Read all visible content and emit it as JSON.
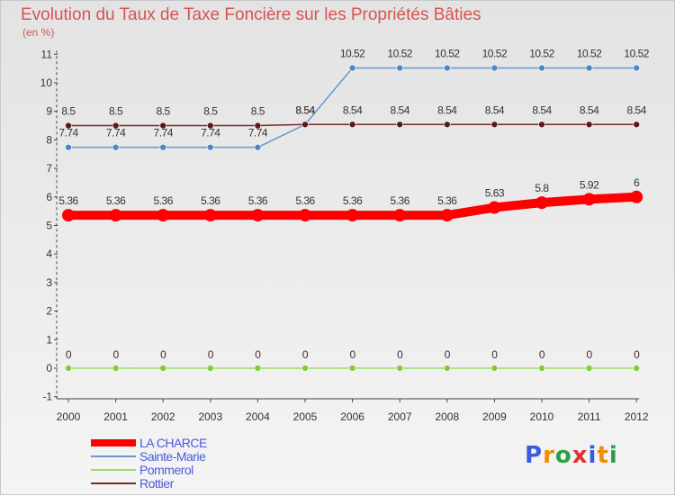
{
  "title": "Evolution du Taux de Taxe Foncière sur les Propriétés Bâties",
  "unit": "(en %)",
  "chart_data": {
    "type": "line",
    "title": "Evolution du Taux de Taxe Foncière sur les Propriétés Bâties",
    "ylabel": "(en %)",
    "xlabel": "",
    "categories": [
      "2000",
      "2001",
      "2002",
      "2003",
      "2004",
      "2005",
      "2006",
      "2007",
      "2008",
      "2009",
      "2010",
      "2011",
      "2012"
    ],
    "ylim": [
      -1,
      11
    ],
    "yticks": [
      -1,
      0,
      1,
      2,
      3,
      4,
      5,
      6,
      7,
      8,
      9,
      10,
      11
    ],
    "ytick_labels": [
      "-1",
      "0",
      "1",
      "2",
      "3",
      "4",
      "5",
      "6",
      "7",
      "8",
      "9",
      "10",
      "11"
    ],
    "grid": false,
    "legend_position": "bottom-left",
    "series": [
      {
        "name": "LA CHARCE",
        "color": "#ff0000",
        "values": [
          5.36,
          5.36,
          5.36,
          5.36,
          5.36,
          5.36,
          5.36,
          5.36,
          5.36,
          5.63,
          5.8,
          5.92,
          6
        ],
        "labels": [
          "5.36",
          "5.36",
          "5.36",
          "5.36",
          "5.36",
          "5.36",
          "5.36",
          "5.36",
          "5.36",
          "5.63",
          "5.8",
          "5.92",
          "6"
        ]
      },
      {
        "name": "Sainte-Marie",
        "color": "#6699cc",
        "values": [
          7.74,
          7.74,
          7.74,
          7.74,
          7.74,
          8.54,
          10.52,
          10.52,
          10.52,
          10.52,
          10.52,
          10.52,
          10.52
        ],
        "labels": [
          "7.74",
          "7.74",
          "7.74",
          "7.74",
          "7.74",
          "8.54",
          "10.52",
          "10.52",
          "10.52",
          "10.52",
          "10.52",
          "10.52",
          "10.52"
        ]
      },
      {
        "name": "Pommerol",
        "color": "#99dd66",
        "values": [
          0,
          0,
          0,
          0,
          0,
          0,
          0,
          0,
          0,
          0,
          0,
          0,
          0
        ],
        "labels": [
          "0",
          "0",
          "0",
          "0",
          "0",
          "0",
          "0",
          "0",
          "0",
          "0",
          "0",
          "0",
          "0"
        ]
      },
      {
        "name": "Rottier",
        "color": "#7a2a2a",
        "values": [
          8.5,
          8.5,
          8.5,
          8.5,
          8.5,
          8.54,
          8.54,
          8.54,
          8.54,
          8.54,
          8.54,
          8.54,
          8.54
        ],
        "labels": [
          "8.5",
          "8.5",
          "8.5",
          "8.5",
          "8.5",
          "8.54",
          "8.54",
          "8.54",
          "8.54",
          "8.54",
          "8.54",
          "8.54",
          "8.54"
        ]
      }
    ]
  },
  "logo": {
    "text": "Proxiti",
    "letter_colors": [
      "#3b5bdb",
      "#f08c00",
      "#2f9e44",
      "#e03131",
      "#3b5bdb",
      "#f08c00",
      "#2f9e44"
    ]
  }
}
